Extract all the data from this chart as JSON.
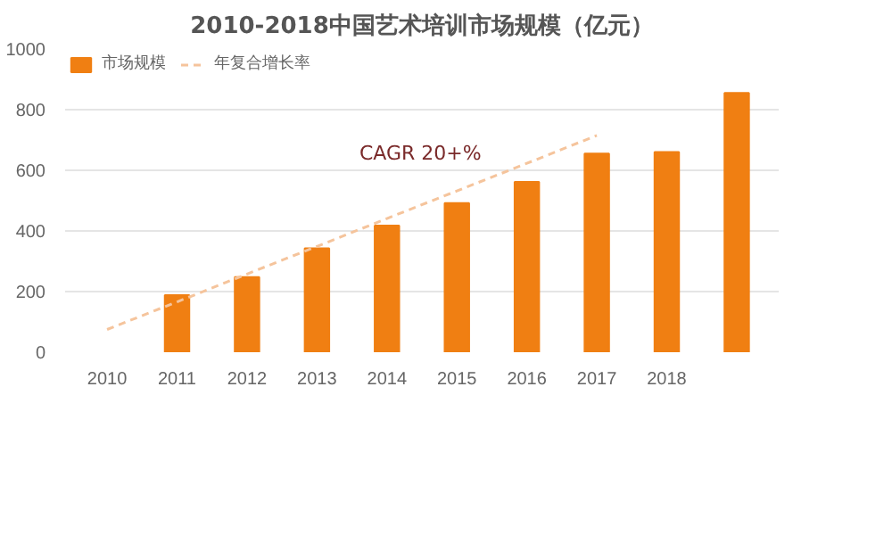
{
  "chart_data": {
    "type": "bar",
    "title": "2010-2018中国艺术培训市场规模（亿元）",
    "categories": [
      "2010",
      "2011",
      "2012",
      "2013",
      "2014",
      "2015",
      "2016",
      "2017",
      "2018",
      null
    ],
    "series": [
      {
        "name": "市场规模",
        "color": "#f07f12",
        "values": [
          null,
          188,
          248,
          343,
          418,
          492,
          562,
          655,
          660,
          855
        ]
      },
      {
        "name": "年复合增长率",
        "type": "line",
        "color": "#f5c49c",
        "line_style": "dashed",
        "marker": "none",
        "values": [
          75,
          166,
          258,
          349,
          441,
          532,
          623,
          715,
          null,
          null
        ]
      }
    ],
    "annotations": [
      "CAGR 20+%"
    ],
    "ylim": [
      0,
      1000
    ],
    "yticks": [
      0,
      200,
      400,
      600,
      800,
      1000
    ],
    "grid": "y",
    "legend": "top left"
  }
}
